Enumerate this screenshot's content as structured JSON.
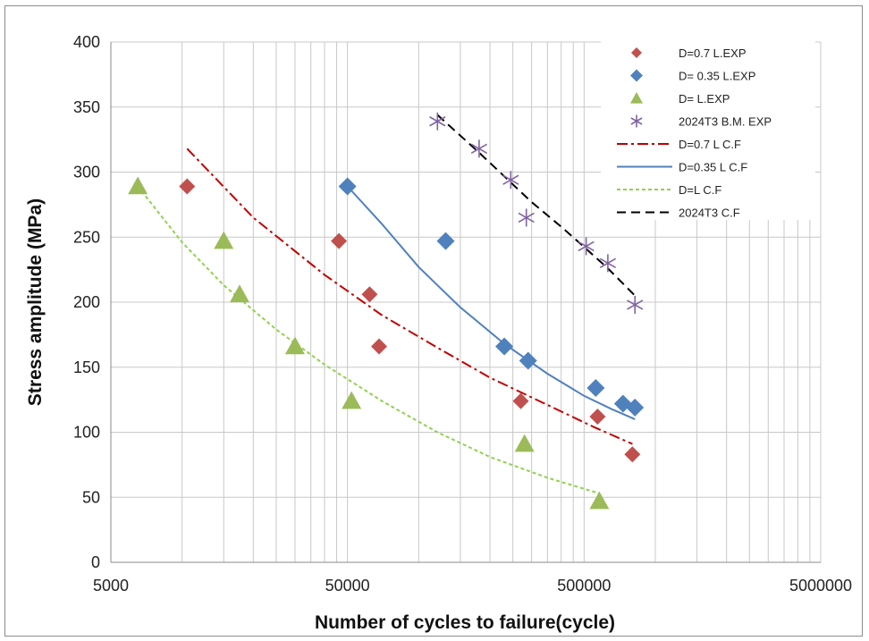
{
  "chart_data": {
    "type": "scatter",
    "title": "",
    "xlabel": "Number of cycles to failure(cycle)",
    "ylabel": "Stress amplitude (MPa)",
    "x_scale": "log",
    "xlim": [
      5000,
      5000000
    ],
    "ylim": [
      0,
      400
    ],
    "x_ticks": [
      5000,
      50000,
      500000,
      5000000
    ],
    "x_tick_labels": [
      "5000",
      "50000",
      "500000",
      "5000000"
    ],
    "y_ticks": [
      0,
      50,
      100,
      150,
      200,
      250,
      300,
      350,
      400
    ],
    "y_tick_labels": [
      "0",
      "50",
      "100",
      "150",
      "200",
      "250",
      "300",
      "350",
      "400"
    ],
    "grid": true,
    "legend_position": "top-right",
    "series": [
      {
        "name": "D=0.7 L.EXP",
        "kind": "points",
        "marker": "diamond-small",
        "color": "#c0504d",
        "x": [
          10500,
          46000,
          62000,
          68000,
          270000,
          570000,
          800000
        ],
        "y": [
          289,
          247,
          206,
          166,
          124,
          112,
          83
        ]
      },
      {
        "name": "D= 0.35 L.EXP",
        "kind": "points",
        "marker": "diamond",
        "color": "#4f81bd",
        "x": [
          50000,
          130000,
          230000,
          290000,
          560000,
          730000,
          820000
        ],
        "y": [
          289,
          247,
          166,
          155,
          134,
          122,
          119
        ]
      },
      {
        "name": "D= L.EXP",
        "kind": "points",
        "marker": "triangle",
        "color": "#9bbb59",
        "x": [
          6500,
          15000,
          17500,
          30000,
          52000,
          280000,
          580000
        ],
        "y": [
          289,
          247,
          206,
          166,
          124,
          91,
          47
        ]
      },
      {
        "name": "2024T3 B.M. EXP",
        "kind": "points",
        "marker": "asterisk",
        "color": "#8064a2",
        "x": [
          120000,
          180000,
          245000,
          285000,
          510000,
          630000,
          820000
        ],
        "y": [
          339,
          318,
          294,
          265,
          243,
          230,
          198
        ]
      },
      {
        "name": "D=0.7 L C.F",
        "kind": "line",
        "dash": "12 4 3 4",
        "color": "#c00000",
        "x": [
          10500,
          20000,
          40000,
          70000,
          120000,
          200000,
          350000,
          550000,
          800000
        ],
        "y": [
          318,
          265,
          221,
          190,
          165,
          142,
          121,
          104,
          91
        ]
      },
      {
        "name": "D=0.35 L C.F",
        "kind": "line",
        "dash": "",
        "color": "#4f81bd",
        "x": [
          50000,
          70000,
          100000,
          150000,
          230000,
          350000,
          500000,
          650000,
          820000
        ],
        "y": [
          289,
          260,
          227,
          196,
          168,
          145,
          128,
          118,
          110
        ]
      },
      {
        "name": "D=L C.F",
        "kind": "line",
        "dash": "4 3",
        "color": "#92d050",
        "x": [
          6500,
          10000,
          15000,
          25000,
          40000,
          70000,
          120000,
          200000,
          350000,
          580000
        ],
        "y": [
          289,
          246,
          213,
          179,
          152,
          124,
          100,
          81,
          65,
          53
        ]
      },
      {
        "name": "2024T3 C.F",
        "kind": "line",
        "dash": "10 6",
        "color": "#000000",
        "x": [
          120000,
          180000,
          245000,
          300000,
          400000,
          510000,
          630000,
          820000
        ],
        "y": [
          344,
          315,
          292,
          277,
          258,
          241,
          226,
          205
        ]
      }
    ]
  }
}
